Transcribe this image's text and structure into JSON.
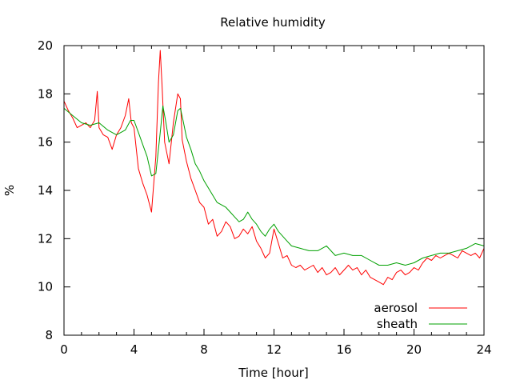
{
  "chart_data": {
    "type": "line",
    "title": "Relative humidity",
    "xlabel": "Time [hour]",
    "ylabel": "%",
    "xlim": [
      0,
      24
    ],
    "ylim": [
      8,
      20
    ],
    "xticks": [
      0,
      4,
      8,
      12,
      16,
      20,
      24
    ],
    "yticks": [
      8,
      10,
      12,
      14,
      16,
      18,
      20
    ],
    "xtick_labels": [
      "0",
      "4",
      "8",
      "12",
      "16",
      "20",
      "24"
    ],
    "ytick_labels": [
      "8",
      "10",
      "12",
      "14",
      "16",
      "18",
      "20"
    ],
    "grid": false,
    "legend_position": "bottom-right",
    "series": [
      {
        "name": "aerosol",
        "color": "#ff0000",
        "x": [
          0,
          0.25,
          0.5,
          0.75,
          1,
          1.25,
          1.5,
          1.75,
          1.9,
          2,
          2.25,
          2.5,
          2.75,
          3,
          3.25,
          3.5,
          3.7,
          3.85,
          4,
          4.25,
          4.5,
          4.75,
          5,
          5.25,
          5.4,
          5.5,
          5.6,
          5.75,
          6,
          6.25,
          6.5,
          6.65,
          6.75,
          7,
          7.25,
          7.5,
          7.75,
          8,
          8.25,
          8.5,
          8.75,
          9,
          9.25,
          9.5,
          9.75,
          10,
          10.25,
          10.5,
          10.75,
          11,
          11.25,
          11.5,
          11.75,
          12,
          12.25,
          12.5,
          12.75,
          13,
          13.25,
          13.5,
          13.75,
          14,
          14.25,
          14.5,
          14.75,
          15,
          15.25,
          15.5,
          15.75,
          16,
          16.25,
          16.5,
          16.75,
          17,
          17.25,
          17.5,
          17.75,
          18,
          18.25,
          18.5,
          18.75,
          19,
          19.25,
          19.5,
          19.75,
          20,
          20.25,
          20.5,
          20.75,
          21,
          21.25,
          21.5,
          21.75,
          22,
          22.25,
          22.5,
          22.75,
          23,
          23.25,
          23.5,
          23.75,
          24
        ],
        "values": [
          17.7,
          17.3,
          17,
          16.6,
          16.7,
          16.8,
          16.6,
          16.9,
          18.1,
          16.6,
          16.3,
          16.2,
          15.7,
          16.3,
          16.6,
          17.1,
          17.8,
          16.8,
          16.6,
          14.9,
          14.3,
          13.8,
          13.1,
          15.4,
          18.5,
          19.8,
          18.4,
          16,
          15.1,
          16.8,
          18,
          17.8,
          16.1,
          15.2,
          14.5,
          14,
          13.5,
          13.3,
          12.6,
          12.8,
          12.1,
          12.3,
          12.7,
          12.5,
          12,
          12.1,
          12.4,
          12.2,
          12.5,
          11.9,
          11.6,
          11.2,
          11.4,
          12.4,
          11.8,
          11.2,
          11.3,
          10.9,
          10.8,
          10.9,
          10.7,
          10.8,
          10.9,
          10.6,
          10.8,
          10.5,
          10.6,
          10.8,
          10.5,
          10.7,
          10.9,
          10.7,
          10.8,
          10.5,
          10.7,
          10.4,
          10.3,
          10.2,
          10.1,
          10.4,
          10.3,
          10.6,
          10.7,
          10.5,
          10.6,
          10.8,
          10.7,
          11,
          11.2,
          11.1,
          11.3,
          11.2,
          11.3,
          11.4,
          11.3,
          11.2,
          11.5,
          11.4,
          11.3,
          11.4,
          11.2,
          11.6
        ]
      },
      {
        "name": "sheath",
        "color": "#00a000",
        "x": [
          0,
          0.5,
          1,
          1.5,
          2,
          2.5,
          3,
          3.5,
          3.8,
          4,
          4.25,
          4.5,
          4.75,
          5,
          5.25,
          5.5,
          5.65,
          5.8,
          6,
          6.25,
          6.5,
          6.65,
          6.8,
          7,
          7.25,
          7.5,
          7.75,
          8,
          8.25,
          8.5,
          8.75,
          9,
          9.25,
          9.5,
          9.75,
          10,
          10.25,
          10.5,
          10.75,
          11,
          11.25,
          11.5,
          11.75,
          12,
          12.25,
          12.5,
          12.75,
          13,
          13.5,
          14,
          14.5,
          15,
          15.5,
          16,
          16.5,
          17,
          17.5,
          18,
          18.5,
          19,
          19.5,
          20,
          20.5,
          21,
          21.5,
          22,
          22.5,
          23,
          23.5,
          24
        ],
        "values": [
          17.4,
          17.1,
          16.8,
          16.7,
          16.8,
          16.5,
          16.3,
          16.5,
          16.9,
          16.9,
          16.4,
          15.9,
          15.4,
          14.6,
          14.7,
          16.4,
          17.5,
          16.9,
          16,
          16.3,
          17.3,
          17.4,
          16.9,
          16.2,
          15.7,
          15.1,
          14.8,
          14.4,
          14.1,
          13.8,
          13.5,
          13.4,
          13.3,
          13.1,
          12.9,
          12.7,
          12.8,
          13.1,
          12.8,
          12.6,
          12.3,
          12.1,
          12.4,
          12.6,
          12.3,
          12.1,
          11.9,
          11.7,
          11.6,
          11.5,
          11.5,
          11.7,
          11.3,
          11.4,
          11.3,
          11.3,
          11.1,
          10.9,
          10.9,
          11,
          10.9,
          11,
          11.2,
          11.3,
          11.4,
          11.4,
          11.5,
          11.6,
          11.8,
          11.7
        ]
      }
    ]
  }
}
